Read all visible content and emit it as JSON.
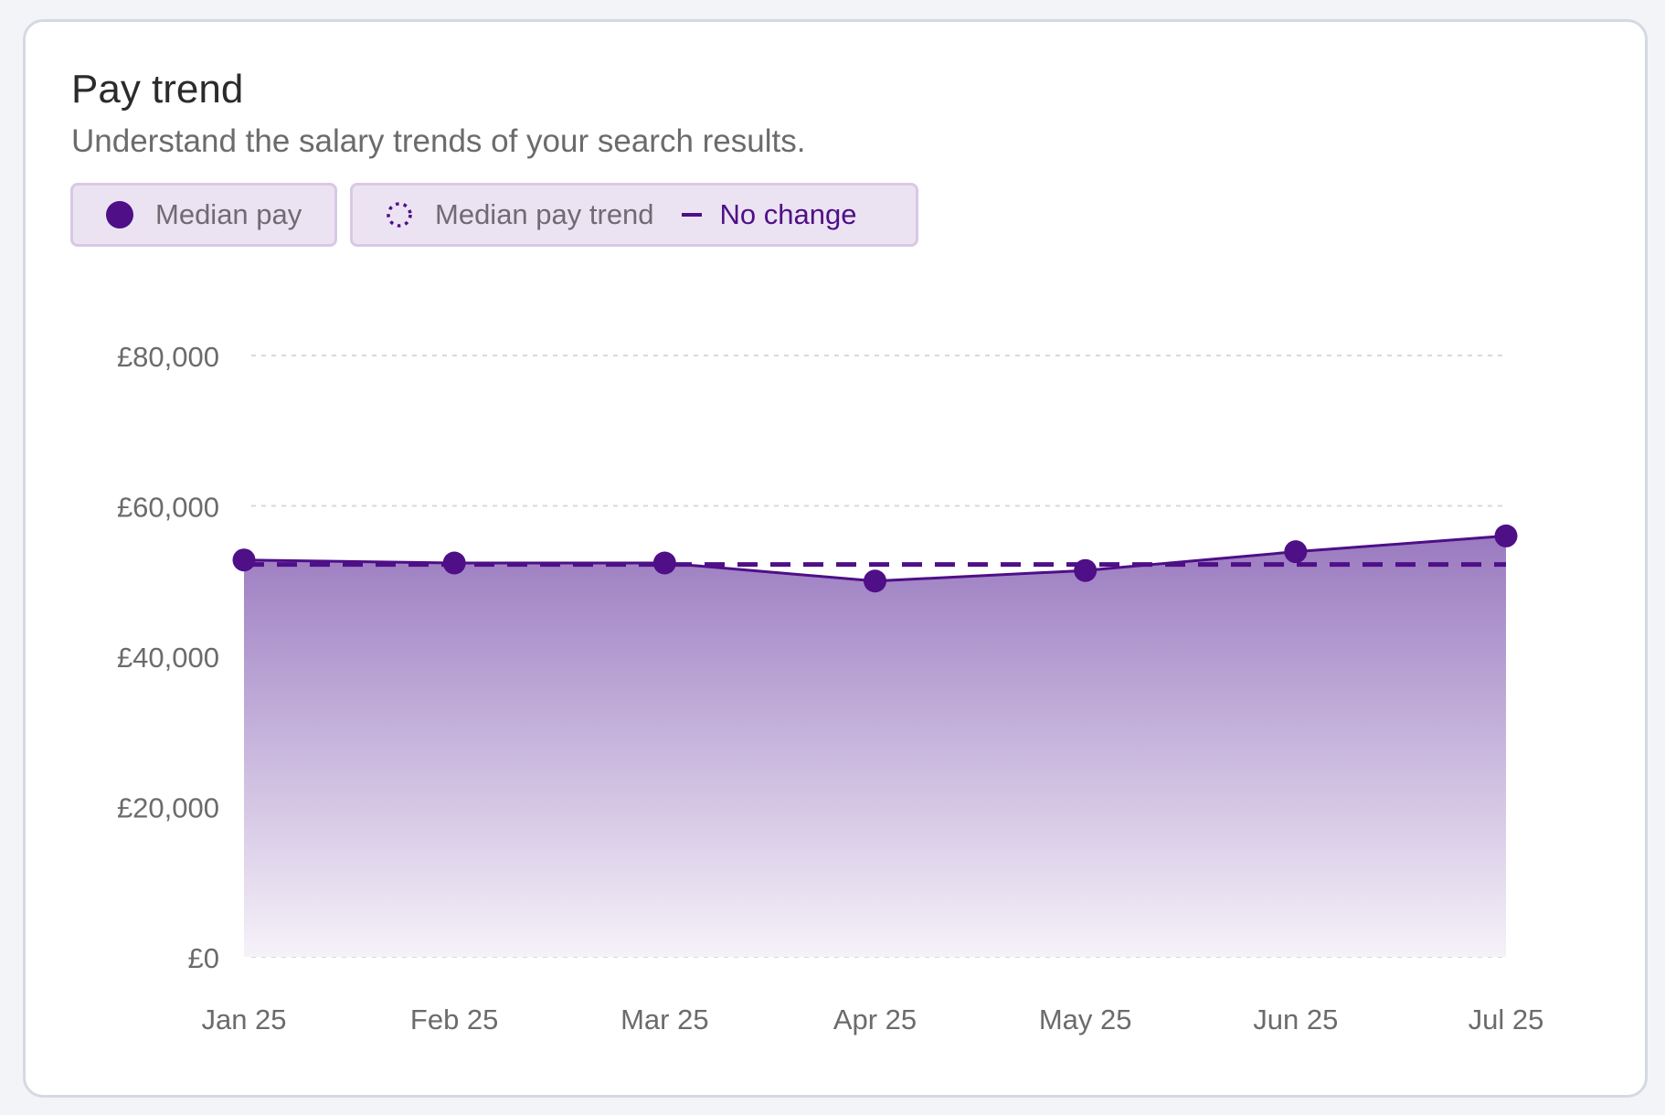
{
  "header": {
    "title": "Pay trend",
    "subtitle": "Understand the salary trends of your search results."
  },
  "legend": {
    "median_label": "Median pay",
    "trend_label": "Median pay trend",
    "change_label": "No change"
  },
  "colors": {
    "accent": "#4e0f87",
    "fill_top": "#9a7ac0",
    "fill_bottom": "#f6f2f9",
    "grid": "#d9d9d9",
    "axis_text": "#6b6b6b"
  },
  "icons": {
    "median": "filled-circle-icon",
    "trend": "dotted-circle-icon",
    "change": "dash-icon"
  },
  "chart_data": {
    "type": "area",
    "categories": [
      "Jan 25",
      "Feb 25",
      "Mar 25",
      "Apr 25",
      "May 25",
      "Jun 25",
      "Jul 25"
    ],
    "series": [
      {
        "name": "Median pay",
        "values": [
          52800,
          52400,
          52400,
          50000,
          51400,
          53900,
          56000
        ]
      },
      {
        "name": "Median pay trend",
        "values": [
          52200,
          52200,
          52200,
          52200,
          52200,
          52200,
          52200
        ]
      }
    ],
    "y_ticks": [
      "£0",
      "£20,000",
      "£40,000",
      "£60,000",
      "£80,000"
    ],
    "y_tick_values": [
      0,
      20000,
      40000,
      60000,
      80000
    ],
    "ylim": [
      0,
      80000
    ],
    "grid": true,
    "legend_position": "top-left"
  }
}
